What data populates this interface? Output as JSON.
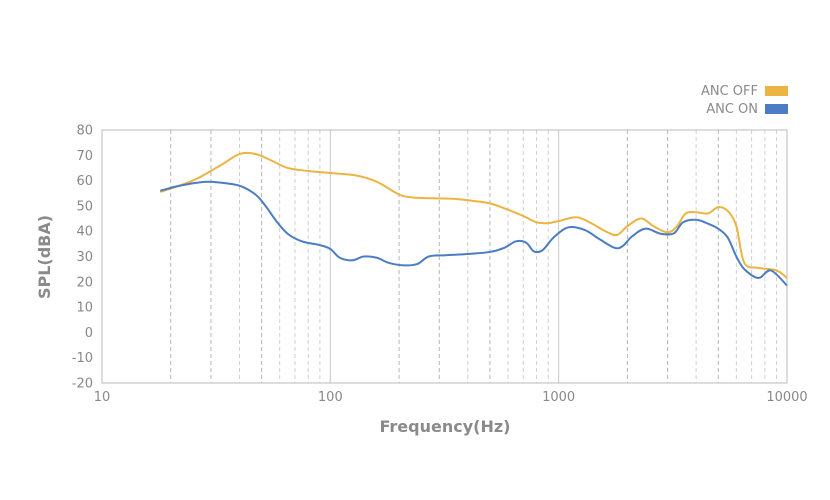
{
  "chart_data": {
    "type": "line",
    "xlabel": "Frequency(Hz)",
    "ylabel": "SPL(dBA)",
    "xscale": "log",
    "xlim": [
      10,
      10000
    ],
    "ylim": [
      -20,
      80
    ],
    "x_ticks": [
      10,
      100,
      1000,
      10000
    ],
    "x_tick_labels": [
      "10",
      "100",
      "1000",
      "10000"
    ],
    "y_ticks": [
      80,
      70,
      60,
      50,
      40,
      30,
      20,
      10,
      0,
      -10,
      -20
    ],
    "y_tick_labels": [
      "80",
      "70",
      "60",
      "50",
      "40",
      "30",
      "20",
      "10",
      "0",
      "-10",
      "-20"
    ],
    "grid": "dashed vertical at log subdivisions",
    "legend_position": "top-right",
    "series": [
      {
        "name": "ANC OFF",
        "color": "#ECB441",
        "x": [
          18,
          25,
          33,
          40,
          47,
          55,
          65,
          80,
          100,
          130,
          160,
          200,
          230,
          280,
          350,
          420,
          500,
          580,
          700,
          800,
          900,
          1000,
          1200,
          1400,
          1600,
          1800,
          2000,
          2300,
          2600,
          3000,
          3300,
          3600,
          4000,
          4500,
          5000,
          5500,
          6000,
          6500,
          7500,
          9000,
          10000
        ],
        "y": [
          55.5,
          60,
          66,
          70.5,
          70.5,
          68,
          65,
          63.8,
          63,
          62,
          59.5,
          54.5,
          53.3,
          53,
          52.8,
          52,
          51,
          49,
          46,
          43.5,
          43.2,
          44,
          45.5,
          43,
          40,
          38.5,
          42,
          45,
          42,
          39.5,
          42,
          47,
          47.5,
          47,
          49.5,
          48,
          42,
          27.5,
          25.5,
          24.5,
          21.5
        ]
      },
      {
        "name": "ANC ON",
        "color": "#4C7DC4",
        "x": [
          18,
          22,
          28,
          33,
          40,
          47,
          52,
          58,
          65,
          75,
          90,
          100,
          110,
          125,
          140,
          160,
          180,
          210,
          240,
          270,
          320,
          400,
          500,
          580,
          650,
          720,
          780,
          850,
          950,
          1100,
          1300,
          1500,
          1750,
          1900,
          2100,
          2400,
          2800,
          3200,
          3500,
          4000,
          4500,
          5000,
          5500,
          6000,
          6500,
          7500,
          8500,
          10000
        ],
        "y": [
          56,
          58,
          59.5,
          59.2,
          58,
          54.5,
          50,
          44,
          39,
          36,
          34.5,
          33,
          29.5,
          28.5,
          30,
          29.5,
          27.5,
          26.5,
          27,
          30,
          30.5,
          31,
          31.8,
          33.5,
          36,
          35.5,
          32,
          32.5,
          37.5,
          41.5,
          40.5,
          37,
          33.5,
          34,
          38,
          41,
          39,
          39.2,
          43.5,
          44.5,
          43,
          41,
          37.5,
          30,
          25,
          21.5,
          24.5,
          18.5
        ]
      }
    ]
  }
}
